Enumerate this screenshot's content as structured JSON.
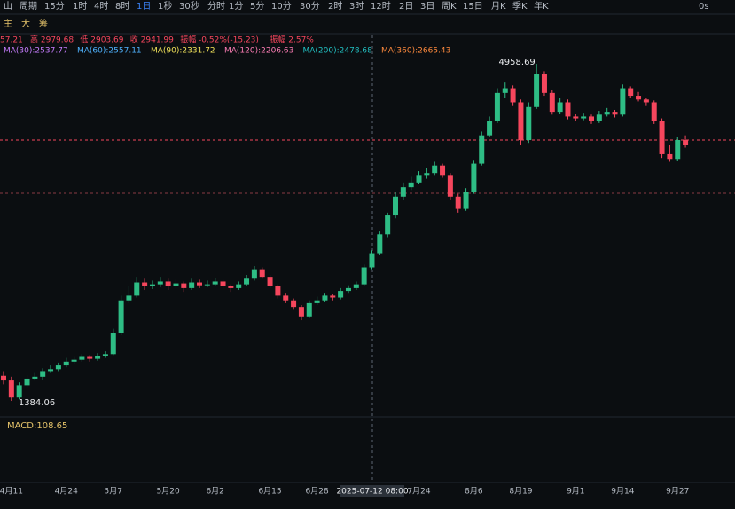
{
  "toolbar": {
    "icon": "山",
    "period_label": "周期",
    "periods": [
      "15分",
      "1时",
      "4时",
      "8时",
      "1日",
      "1秒",
      "30秒",
      "分时",
      "1分",
      "5分",
      "10分",
      "30分",
      "2时",
      "3时",
      "12时",
      "2日",
      "3日",
      "周K",
      "15日",
      "月K",
      "季K",
      "年K"
    ],
    "active": "1日",
    "right": "0s"
  },
  "tools": [
    "主",
    "大",
    "筹"
  ],
  "info": [
    "57.21",
    "高 2979.68",
    "低 2903.69",
    "收 2941.99",
    "振幅 -0.52%(-15.23)",
    "振幅 2.57%"
  ],
  "ma_legend": [
    {
      "text": "MA(30):2537.77",
      "color": "#c77dff"
    },
    {
      "text": "MA(60):2557.11",
      "color": "#4fb3ff"
    },
    {
      "text": "MA(90):2331.72",
      "color": "#f2e35a"
    },
    {
      "text": "MA(120):2206.63",
      "color": "#ff7eb6"
    },
    {
      "text": "MA(200):2478.68",
      "color": "#22c1c3"
    },
    {
      "text": "MA(360):2665.43",
      "color": "#ff8a3d"
    }
  ],
  "chart_data": {
    "type": "candlestick",
    "up_color": "#2ebd85",
    "down_color": "#f6465d",
    "ylim": [
      1215,
      5213
    ],
    "categories": [
      null,
      "4月11",
      null,
      null,
      null,
      null,
      null,
      null,
      "4月24",
      null,
      null,
      null,
      null,
      null,
      "5月7",
      null,
      null,
      null,
      null,
      null,
      null,
      "5月20",
      null,
      null,
      null,
      null,
      null,
      "6月2",
      null,
      null,
      null,
      null,
      null,
      null,
      "6月15",
      null,
      null,
      null,
      null,
      null,
      "6月28",
      null,
      null,
      null,
      null,
      null,
      null,
      null,
      null,
      null,
      null,
      null,
      null,
      "7月24",
      null,
      null,
      null,
      null,
      null,
      null,
      "8月6",
      null,
      null,
      null,
      null,
      null,
      "8月19",
      null,
      null,
      null,
      null,
      null,
      null,
      "9月1",
      null,
      null,
      null,
      null,
      null,
      "9月14",
      null,
      null,
      null,
      null,
      null,
      null,
      "9月27",
      null
    ],
    "candles": [
      [
        1650,
        1700,
        1560,
        1600
      ],
      [
        1600,
        1640,
        1384.06,
        1420
      ],
      [
        1420,
        1580,
        1400,
        1550
      ],
      [
        1550,
        1660,
        1520,
        1620
      ],
      [
        1620,
        1680,
        1600,
        1640
      ],
      [
        1640,
        1730,
        1610,
        1700
      ],
      [
        1700,
        1760,
        1680,
        1720
      ],
      [
        1720,
        1790,
        1700,
        1760
      ],
      [
        1760,
        1840,
        1740,
        1800
      ],
      [
        1800,
        1850,
        1780,
        1820
      ],
      [
        1820,
        1880,
        1800,
        1850
      ],
      [
        1850,
        1870,
        1800,
        1830
      ],
      [
        1830,
        1890,
        1810,
        1860
      ],
      [
        1860,
        1910,
        1840,
        1880
      ],
      [
        1880,
        2150,
        1870,
        2100
      ],
      [
        2100,
        2500,
        2080,
        2450
      ],
      [
        2450,
        2600,
        2420,
        2500
      ],
      [
        2500,
        2700,
        2480,
        2640
      ],
      [
        2640,
        2680,
        2560,
        2600
      ],
      [
        2600,
        2660,
        2570,
        2620
      ],
      [
        2620,
        2700,
        2590,
        2650
      ],
      [
        2650,
        2680,
        2560,
        2600
      ],
      [
        2600,
        2670,
        2580,
        2630
      ],
      [
        2630,
        2650,
        2540,
        2580
      ],
      [
        2580,
        2680,
        2560,
        2640
      ],
      [
        2640,
        2670,
        2580,
        2610
      ],
      [
        2610,
        2660,
        2590,
        2620
      ],
      [
        2620,
        2690,
        2600,
        2650
      ],
      [
        2650,
        2670,
        2570,
        2600
      ],
      [
        2600,
        2620,
        2540,
        2580
      ],
      [
        2580,
        2650,
        2560,
        2620
      ],
      [
        2620,
        2720,
        2600,
        2680
      ],
      [
        2680,
        2814,
        2660,
        2780
      ],
      [
        2780,
        2800,
        2680,
        2700
      ],
      [
        2700,
        2720,
        2580,
        2600
      ],
      [
        2600,
        2620,
        2470,
        2500
      ],
      [
        2500,
        2530,
        2420,
        2450
      ],
      [
        2450,
        2470,
        2350,
        2380
      ],
      [
        2380,
        2400,
        2240,
        2280
      ],
      [
        2280,
        2450,
        2260,
        2420
      ],
      [
        2420,
        2490,
        2400,
        2450
      ],
      [
        2450,
        2530,
        2430,
        2500
      ],
      [
        2500,
        2520,
        2450,
        2480
      ],
      [
        2480,
        2580,
        2460,
        2550
      ],
      [
        2550,
        2610,
        2530,
        2580
      ],
      [
        2580,
        2650,
        2560,
        2620
      ],
      [
        2620,
        2830,
        2600,
        2800
      ],
      [
        2800,
        2980,
        2780,
        2950
      ],
      [
        2950,
        3180,
        2930,
        3150
      ],
      [
        3150,
        3380,
        3120,
        3350
      ],
      [
        3350,
        3600,
        3320,
        3550
      ],
      [
        3550,
        3700,
        3520,
        3650
      ],
      [
        3650,
        3760,
        3620,
        3700
      ],
      [
        3700,
        3820,
        3680,
        3780
      ],
      [
        3780,
        3850,
        3740,
        3800
      ],
      [
        3800,
        3920,
        3780,
        3880
      ],
      [
        3880,
        3900,
        3750,
        3780
      ],
      [
        3780,
        3800,
        3520,
        3550
      ],
      [
        3550,
        3580,
        3380,
        3420
      ],
      [
        3420,
        3640,
        3400,
        3600
      ],
      [
        3600,
        3940,
        3580,
        3900
      ],
      [
        3900,
        4240,
        3880,
        4200
      ],
      [
        4200,
        4400,
        4180,
        4350
      ],
      [
        4350,
        4700,
        4330,
        4650
      ],
      [
        4650,
        4760,
        4600,
        4700
      ],
      [
        4700,
        4730,
        4520,
        4550
      ],
      [
        4550,
        4580,
        4100,
        4150
      ],
      [
        4150,
        4550,
        4120,
        4500
      ],
      [
        4500,
        4958.69,
        4480,
        4850
      ],
      [
        4850,
        4880,
        4620,
        4650
      ],
      [
        4650,
        4680,
        4420,
        4450
      ],
      [
        4450,
        4600,
        4430,
        4550
      ],
      [
        4550,
        4580,
        4370,
        4400
      ],
      [
        4400,
        4430,
        4350,
        4380
      ],
      [
        4380,
        4440,
        4360,
        4400
      ],
      [
        4400,
        4420,
        4320,
        4350
      ],
      [
        4350,
        4460,
        4330,
        4420
      ],
      [
        4420,
        4490,
        4400,
        4450
      ],
      [
        4450,
        4470,
        4390,
        4420
      ],
      [
        4420,
        4740,
        4400,
        4700
      ],
      [
        4700,
        4720,
        4600,
        4620
      ],
      [
        4620,
        4660,
        4560,
        4580
      ],
      [
        4580,
        4600,
        4520,
        4550
      ],
      [
        4550,
        4570,
        4320,
        4350
      ],
      [
        4350,
        4380,
        3960,
        4000
      ],
      [
        4000,
        4100,
        3920,
        3950
      ],
      [
        3950,
        4180,
        3930,
        4150
      ],
      [
        4150,
        4200,
        4070,
        4100
      ]
    ],
    "reference_lines": [
      4150,
      3585
    ],
    "annotations": [
      "4958.69",
      "1384.06"
    ],
    "crosshair_label": "2025-07-12 08:00",
    "macd_label": "MACD:108.65"
  }
}
